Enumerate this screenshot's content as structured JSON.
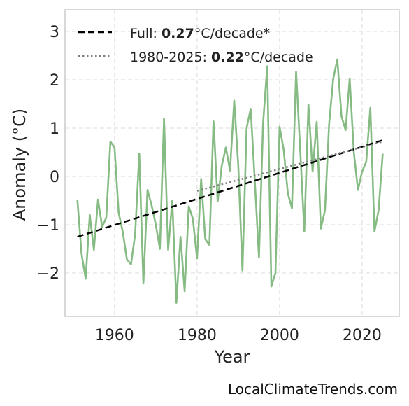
{
  "chart_data": {
    "type": "line",
    "xlabel": "Year",
    "ylabel": "Anomaly (°C)",
    "xlim": [
      1948,
      2029
    ],
    "ylim": [
      -2.9,
      3.45
    ],
    "x_ticks": [
      1960,
      1980,
      2000,
      2020
    ],
    "x_tick_labels": [
      "1960",
      "1980",
      "2000",
      "2020"
    ],
    "y_ticks": [
      -2,
      -1,
      0,
      1,
      2,
      3
    ],
    "y_tick_labels": [
      "−2",
      "−1",
      "0",
      "1",
      "2",
      "3"
    ],
    "grid": true,
    "legend_position": "top-left",
    "colors": {
      "series": "#86bb84",
      "full_trend": "#000000",
      "recent_trend": "#808080"
    },
    "series": [
      {
        "x": [
          1951,
          1952,
          1953,
          1954,
          1955,
          1956,
          1957,
          1958,
          1959,
          1960,
          1961,
          1962,
          1963,
          1964,
          1965,
          1966,
          1967,
          1968,
          1969,
          1970,
          1971,
          1972,
          1973,
          1974,
          1975,
          1976,
          1977,
          1978,
          1979,
          1980,
          1981,
          1982,
          1983,
          1984,
          1985,
          1986,
          1987,
          1988,
          1989,
          1990,
          1991,
          1992,
          1993,
          1994,
          1995,
          1996,
          1997,
          1998,
          1999,
          2000,
          2001,
          2002,
          2003,
          2004,
          2005,
          2006,
          2007,
          2008,
          2009,
          2010,
          2011,
          2012,
          2013,
          2014,
          2015,
          2016,
          2017,
          2018,
          2019,
          2020,
          2021,
          2022,
          2023,
          2024,
          2025
        ],
        "values": [
          -0.48,
          -1.6,
          -2.12,
          -0.8,
          -1.52,
          -0.48,
          -1.05,
          -0.85,
          0.72,
          0.6,
          -0.75,
          -1.15,
          -1.72,
          -1.82,
          -1.2,
          0.47,
          -2.22,
          -0.28,
          -0.6,
          -1.0,
          -1.5,
          1.2,
          -1.52,
          -0.5,
          -2.62,
          -1.25,
          -2.38,
          -0.62,
          -0.88,
          -1.7,
          -0.05,
          -1.3,
          -1.42,
          1.14,
          -0.52,
          0.22,
          0.6,
          0.12,
          1.57,
          0.2,
          -1.95,
          1.0,
          1.4,
          -0.1,
          -1.68,
          1.1,
          2.28,
          -2.28,
          -2.0,
          1.03,
          0.55,
          -0.35,
          -0.66,
          2.17,
          0.55,
          -1.14,
          1.49,
          0.1,
          1.13,
          -1.08,
          -0.7,
          1.08,
          2.02,
          2.42,
          1.25,
          0.96,
          2.02,
          0.5,
          -0.28,
          0.1,
          0.3,
          1.42,
          -1.14,
          -0.7,
          0.47
        ]
      }
    ],
    "trend_lines": [
      {
        "label_prefix": "Full: ",
        "label_value": "0.27",
        "label_suffix": "°C/decade*",
        "x": [
          1951,
          2025
        ],
        "y": [
          -1.25,
          0.75
        ],
        "style": "dashed"
      },
      {
        "label_prefix": "1980-2025: ",
        "label_value": "0.22",
        "label_suffix": "°C/decade",
        "x": [
          1980,
          2025
        ],
        "y": [
          -0.3,
          0.72
        ],
        "style": "dotted"
      }
    ]
  },
  "watermark": "LocalClimateTrends.com"
}
